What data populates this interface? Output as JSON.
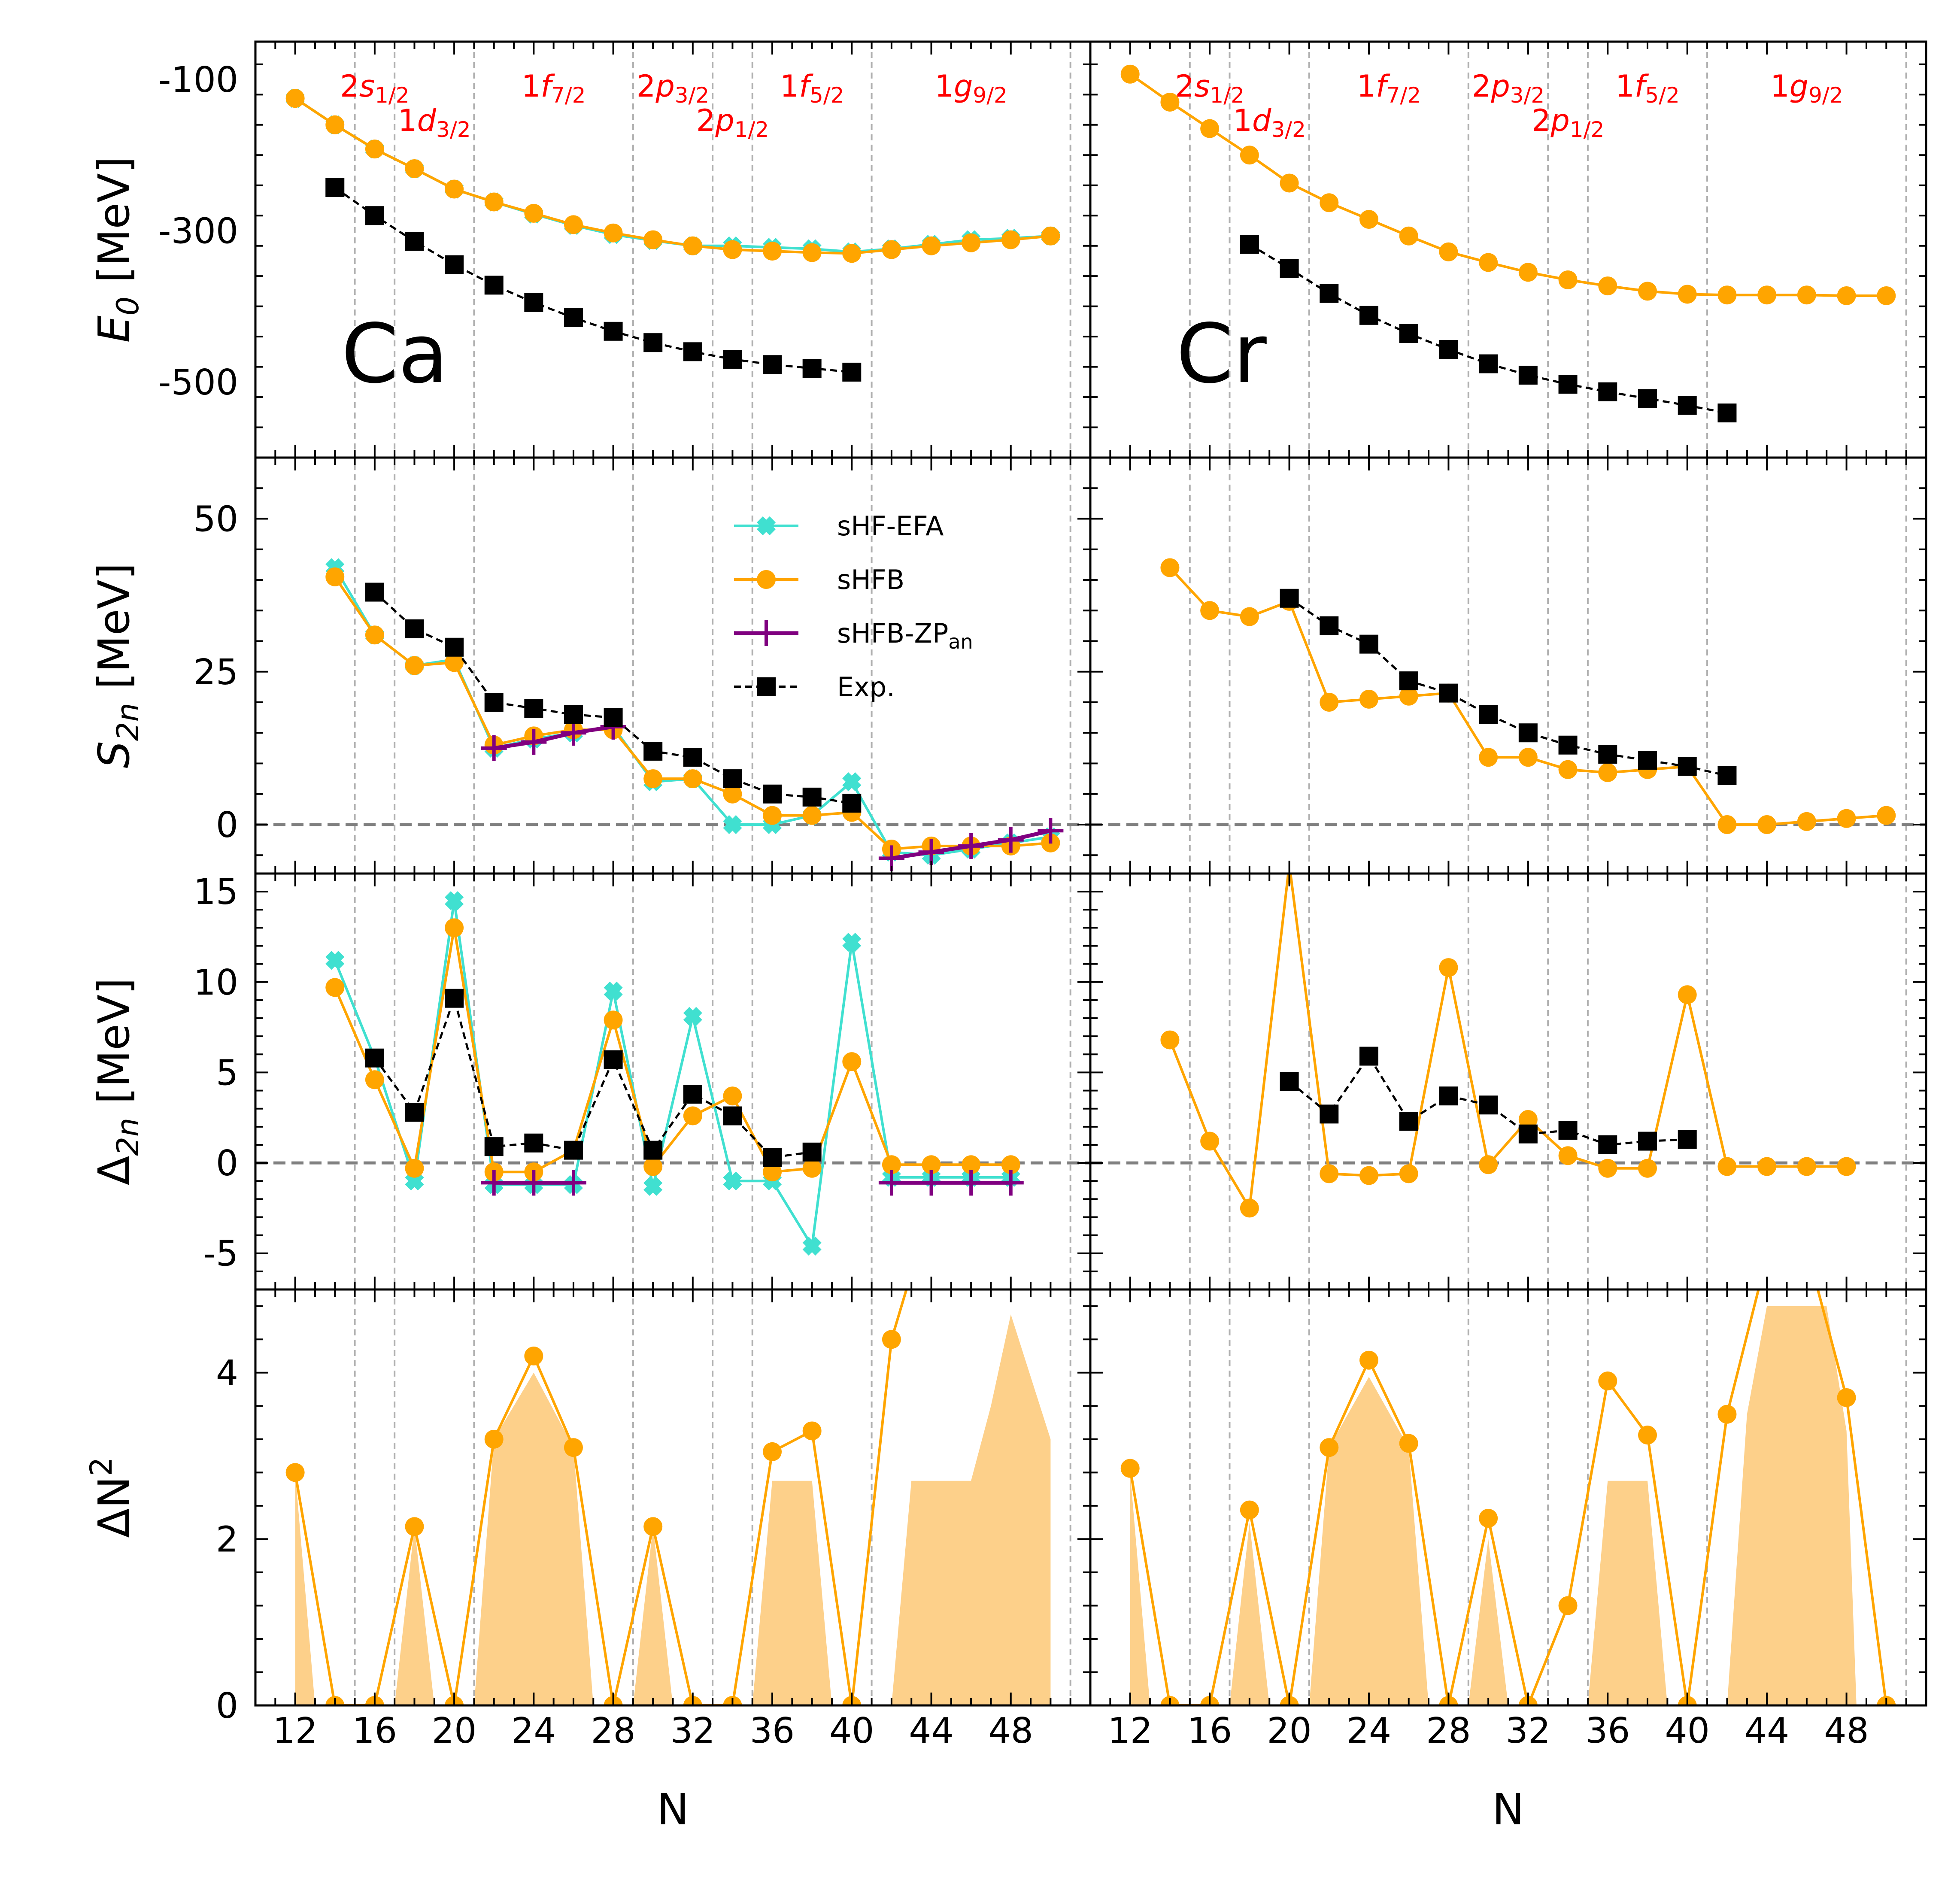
{
  "chart_data": {
    "type": "line",
    "x_label": "N",
    "x_ticks": [
      12,
      16,
      20,
      24,
      28,
      32,
      36,
      40,
      44,
      48
    ],
    "x_range": [
      10,
      52
    ],
    "panels_y": [
      {
        "id": "E0",
        "ylabel_main": "E",
        "ylabel_sub": "0",
        "ylabel_unit": " [MeV]",
        "ylim": [
          -600,
          -50
        ],
        "ticks": [
          -100,
          -300,
          -500
        ],
        "tick_labels": [
          "-100",
          "-300",
          "-500"
        ]
      },
      {
        "id": "S2n",
        "ylabel_main": "S",
        "ylabel_sub": "2n",
        "ylabel_unit": " [MeV]",
        "ylim": [
          -8,
          60
        ],
        "ticks": [
          0,
          25,
          50
        ],
        "tick_labels": [
          "0",
          "25",
          "50"
        ]
      },
      {
        "id": "D2n",
        "ylabel_main": "Δ",
        "ylabel_sub": "2n",
        "ylabel_unit": " [MeV]",
        "ylim": [
          -7,
          16
        ],
        "ticks": [
          -5,
          0,
          5,
          10,
          15
        ],
        "tick_labels": [
          "-5",
          "0",
          "5",
          "10",
          "15"
        ]
      },
      {
        "id": "dN2",
        "ylabel_main": "ΔN",
        "ylabel_sup": "2",
        "ylabel_unit": "",
        "ylim": [
          0,
          5
        ],
        "ticks": [
          0,
          2,
          4
        ],
        "tick_labels": [
          "0",
          "2",
          "4"
        ]
      }
    ],
    "shell_lines": [
      15,
      17,
      21,
      29,
      33,
      35,
      41,
      51
    ],
    "shell_labels": [
      {
        "main": "2s",
        "sub": "1/2",
        "x": 16,
        "row": 0
      },
      {
        "main": "1d",
        "sub": "3/2",
        "x": 19,
        "row": 1
      },
      {
        "main": "1f",
        "sub": "7/2",
        "x": 25,
        "row": 0
      },
      {
        "main": "2p",
        "sub": "3/2",
        "x": 31,
        "row": 0
      },
      {
        "main": "2p",
        "sub": "1/2",
        "x": 34,
        "row": 1
      },
      {
        "main": "1f",
        "sub": "5/2",
        "x": 38,
        "row": 0
      },
      {
        "main": "1g",
        "sub": "9/2",
        "x": 46,
        "row": 0
      }
    ],
    "legend": [
      {
        "label": "sHF-EFA",
        "color": "#40e0d0",
        "marker": "x"
      },
      {
        "label": "sHFB",
        "color": "#ffa500",
        "marker": "o"
      },
      {
        "label": "sHFB-ZP",
        "sub": "an",
        "color": "#800080",
        "marker": "+"
      },
      {
        "label": "Exp.",
        "color": "#000000",
        "marker": "s"
      }
    ],
    "columns": [
      {
        "nucleus": "Ca",
        "E0": {
          "sHF_EFA": {
            "x": [
              12,
              14,
              16,
              18,
              20,
              22,
              24,
              26,
              28,
              30,
              32,
              34,
              36,
              38,
              40,
              42,
              44,
              46,
              48,
              50
            ],
            "y": [
              -125,
              -160,
              -192,
              -218,
              -245,
              -262,
              -278,
              -293,
              -305,
              -313,
              -320,
              -320,
              -322,
              -324,
              -328,
              -324,
              -318,
              -312,
              -310,
              -307
            ]
          },
          "sHFB": {
            "x": [
              12,
              14,
              16,
              18,
              20,
              22,
              24,
              26,
              28,
              30,
              32,
              34,
              36,
              38,
              40,
              42,
              44,
              46,
              48,
              50
            ],
            "y": [
              -125,
              -160,
              -192,
              -218,
              -245,
              -262,
              -277,
              -292,
              -303,
              -312,
              -320,
              -325,
              -327,
              -329,
              -330,
              -325,
              -320,
              -316,
              -312,
              -307
            ]
          },
          "exp": {
            "x": [
              14,
              16,
              18,
              20,
              22,
              24,
              26,
              28,
              30,
              32,
              34,
              36,
              38,
              40
            ],
            "y": [
              -243,
              -280,
              -314,
              -345,
              -372,
              -395,
              -415,
              -433,
              -448,
              -460,
              -470,
              -477,
              -482,
              -487
            ]
          }
        },
        "S2n": {
          "sHF_EFA": {
            "x": [
              14,
              16,
              18,
              20,
              22,
              24,
              26,
              28,
              30,
              32,
              34,
              36,
              38,
              40,
              42,
              44,
              46,
              48,
              50
            ],
            "y": [
              42,
              31,
              26,
              27,
              12.5,
              14,
              15,
              16,
              7,
              7.5,
              0,
              0,
              1.5,
              7,
              -4.5,
              -5,
              -4,
              -3,
              -2
            ]
          },
          "sHFB": {
            "x": [
              14,
              16,
              18,
              20,
              22,
              24,
              26,
              28,
              30,
              32,
              34,
              36,
              38,
              40,
              42,
              44,
              46,
              48,
              50
            ],
            "y": [
              40.5,
              31,
              26,
              26.5,
              13,
              14.5,
              15.5,
              15.5,
              7.5,
              7.5,
              5,
              1.5,
              1.5,
              2,
              -4,
              -3.5,
              -3.5,
              -3.5,
              -3
            ]
          },
          "sHFB_ZPan": [
            {
              "x": [
                22,
                24,
                26,
                28
              ],
              "y": [
                12.5,
                13.5,
                15,
                16
              ]
            },
            {
              "x": [
                42,
                44,
                46,
                48,
                50
              ],
              "y": [
                -5.5,
                -4.5,
                -3.5,
                -2.5,
                -1
              ]
            }
          ],
          "exp": {
            "x": [
              16,
              18,
              20,
              22,
              24,
              26,
              28,
              30,
              32,
              34,
              36,
              38,
              40
            ],
            "y": [
              38,
              32,
              29,
              20,
              19,
              18,
              17.5,
              12,
              11,
              7.5,
              5,
              4.5,
              3.5
            ]
          }
        },
        "D2n": {
          "sHF_EFA": {
            "x": [
              14,
              16,
              18,
              20,
              22,
              24,
              26,
              28,
              30,
              32,
              34,
              36,
              38,
              40,
              42,
              44,
              46,
              48
            ],
            "y": [
              11.2,
              5.8,
              -1,
              14.5,
              -1.2,
              -1.2,
              -1.2,
              9.5,
              -1.3,
              8.1,
              -1,
              -1,
              -4.6,
              12.2,
              -0.8,
              -0.8,
              -0.8,
              -0.8
            ]
          },
          "sHFB": {
            "x": [
              14,
              16,
              18,
              20,
              22,
              24,
              26,
              28,
              30,
              32,
              34,
              36,
              38,
              40,
              42,
              44,
              46,
              48
            ],
            "y": [
              9.7,
              4.6,
              -0.3,
              13,
              -0.5,
              -0.5,
              0.7,
              7.9,
              -0.2,
              2.6,
              3.7,
              -0.5,
              -0.3,
              5.6,
              -0.1,
              -0.1,
              -0.1,
              -0.1
            ]
          },
          "sHFB_ZPan": [
            {
              "x": [
                22,
                24,
                26
              ],
              "y": [
                -1.1,
                -1.1,
                -1.1
              ]
            },
            {
              "x": [
                42,
                44,
                46,
                48
              ],
              "y": [
                -1.1,
                -1.1,
                -1.1,
                -1.1
              ]
            }
          ],
          "exp": {
            "x": [
              16,
              18,
              20,
              22,
              24,
              26,
              28,
              30,
              32,
              34,
              36,
              38
            ],
            "y": [
              5.8,
              2.8,
              9.1,
              0.9,
              1.1,
              0.7,
              5.7,
              0.7,
              3.8,
              2.6,
              0.3,
              0.6
            ]
          }
        },
        "dN2": {
          "line": {
            "x": [
              12,
              14,
              16,
              18,
              20,
              22,
              24,
              26,
              28,
              30,
              32,
              34,
              36,
              38,
              40,
              42,
              43
            ],
            "y": [
              2.8,
              0,
              0,
              2.15,
              0,
              3.2,
              4.2,
              3.1,
              0,
              2.15,
              0,
              0,
              3.05,
              3.3,
              0,
              4.4,
              5.2
            ]
          },
          "fill": {
            "x": [
              12,
              12,
              13,
              17,
              18,
              19,
              21,
              22,
              24,
              26,
              27,
              29,
              30,
              31,
              33,
              35,
              36,
              37,
              38,
              39,
              41,
              42,
              43,
              44,
              45,
              46,
              47,
              48,
              50,
              50
            ],
            "y": [
              0,
              2.8,
              0,
              0,
              2.15,
              0,
              0,
              3.2,
              4.0,
              3.1,
              0,
              0,
              2.15,
              0,
              0,
              0,
              2.7,
              2.7,
              2.7,
              0,
              0,
              0,
              2.7,
              2.7,
              2.7,
              2.7,
              3.6,
              4.7,
              3.2,
              0
            ]
          }
        }
      },
      {
        "nucleus": "Cr",
        "E0": {
          "sHFB": {
            "x": [
              12,
              14,
              16,
              18,
              20,
              22,
              24,
              26,
              28,
              30,
              32,
              34,
              36,
              38,
              40,
              42,
              44,
              46,
              48,
              50
            ],
            "y": [
              -93,
              -130,
              -165,
              -200,
              -237,
              -263,
              -285,
              -307,
              -328,
              -342,
              -355,
              -365,
              -373,
              -380,
              -384,
              -385,
              -385,
              -385,
              -386,
              -386
            ]
          },
          "exp": {
            "x": [
              18,
              20,
              22,
              24,
              26,
              28,
              30,
              32,
              34,
              36,
              38,
              40,
              42
            ],
            "y": [
              -318,
              -350,
              -383,
              -412,
              -436,
              -457,
              -476,
              -491,
              -503,
              -513,
              -522,
              -531,
              -541
            ]
          }
        },
        "S2n": {
          "sHFB": {
            "x": [
              14,
              16,
              18,
              20,
              22,
              24,
              26,
              28,
              30,
              32,
              34,
              36,
              38,
              40,
              42,
              44,
              46,
              48,
              50
            ],
            "y": [
              42,
              35,
              34,
              36.5,
              20,
              20.5,
              21,
              21.5,
              11,
              11,
              9,
              8.5,
              9,
              9.5,
              0,
              0,
              0.5,
              1,
              1.5
            ]
          },
          "exp": {
            "x": [
              20,
              22,
              24,
              26,
              28,
              30,
              32,
              34,
              36,
              38,
              40,
              42
            ],
            "y": [
              37,
              32.5,
              29.5,
              23.5,
              21.5,
              18,
              15,
              13,
              11.5,
              10.5,
              9.5,
              8
            ]
          }
        },
        "D2n": {
          "sHFB": {
            "x": [
              14,
              16,
              18,
              20,
              22,
              24,
              26,
              28,
              30,
              32,
              34,
              36,
              38,
              40,
              42,
              44,
              46,
              48
            ],
            "y": [
              6.8,
              1.2,
              -2.5,
              16.5,
              -0.6,
              -0.7,
              -0.6,
              10.8,
              -0.1,
              2.4,
              0.4,
              -0.3,
              -0.3,
              9.3,
              -0.2,
              -0.2,
              -0.2,
              -0.2
            ]
          },
          "exp": {
            "x": [
              20,
              22,
              24,
              26,
              28,
              30,
              32,
              34,
              36,
              38,
              40
            ],
            "y": [
              4.5,
              2.7,
              5.9,
              2.3,
              3.7,
              3.2,
              1.6,
              1.8,
              1.0,
              1.2,
              1.3
            ]
          }
        },
        "dN2": {
          "line": {
            "x": [
              12,
              14,
              16,
              18,
              20,
              22,
              24,
              26,
              28,
              30,
              32,
              34,
              36,
              38,
              40,
              42,
              44,
              46,
              48,
              50
            ],
            "y": [
              2.85,
              0,
              0,
              2.35,
              0,
              3.1,
              4.15,
              3.15,
              0,
              2.25,
              0,
              1.2,
              3.9,
              3.25,
              0,
              3.5,
              5.4,
              5.5,
              3.7,
              0
            ]
          },
          "fill": {
            "x": [
              12,
              12,
              13,
              17,
              18,
              19,
              21,
              22,
              24,
              26,
              27,
              29,
              30,
              31,
              34,
              35,
              36,
              37,
              38,
              39,
              41,
              42,
              43,
              44,
              45,
              46,
              47,
              48,
              48.5
            ],
            "y": [
              0,
              2.8,
              0,
              0,
              2.2,
              0,
              0,
              3.1,
              3.95,
              3.1,
              0,
              0,
              2.0,
              0,
              0,
              0,
              2.7,
              2.7,
              2.7,
              0,
              0,
              0,
              3.5,
              4.8,
              4.8,
              4.8,
              4.8,
              3.3,
              0
            ]
          }
        }
      }
    ]
  }
}
